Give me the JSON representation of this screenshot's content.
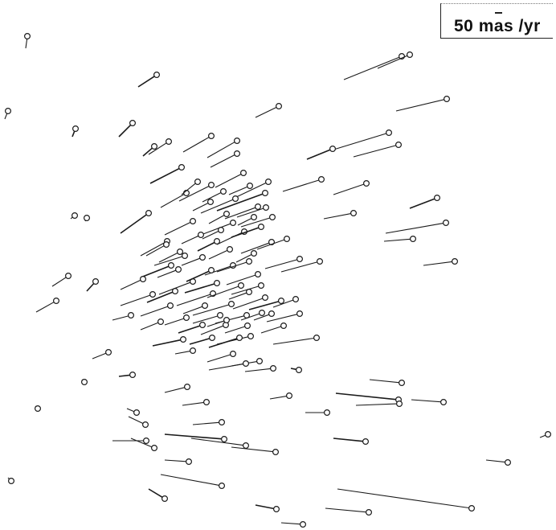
{
  "scale": {
    "label": "50 mas /yr"
  },
  "colors": {
    "ink": "#1a1a1a",
    "background": "#ffffff"
  }
}
